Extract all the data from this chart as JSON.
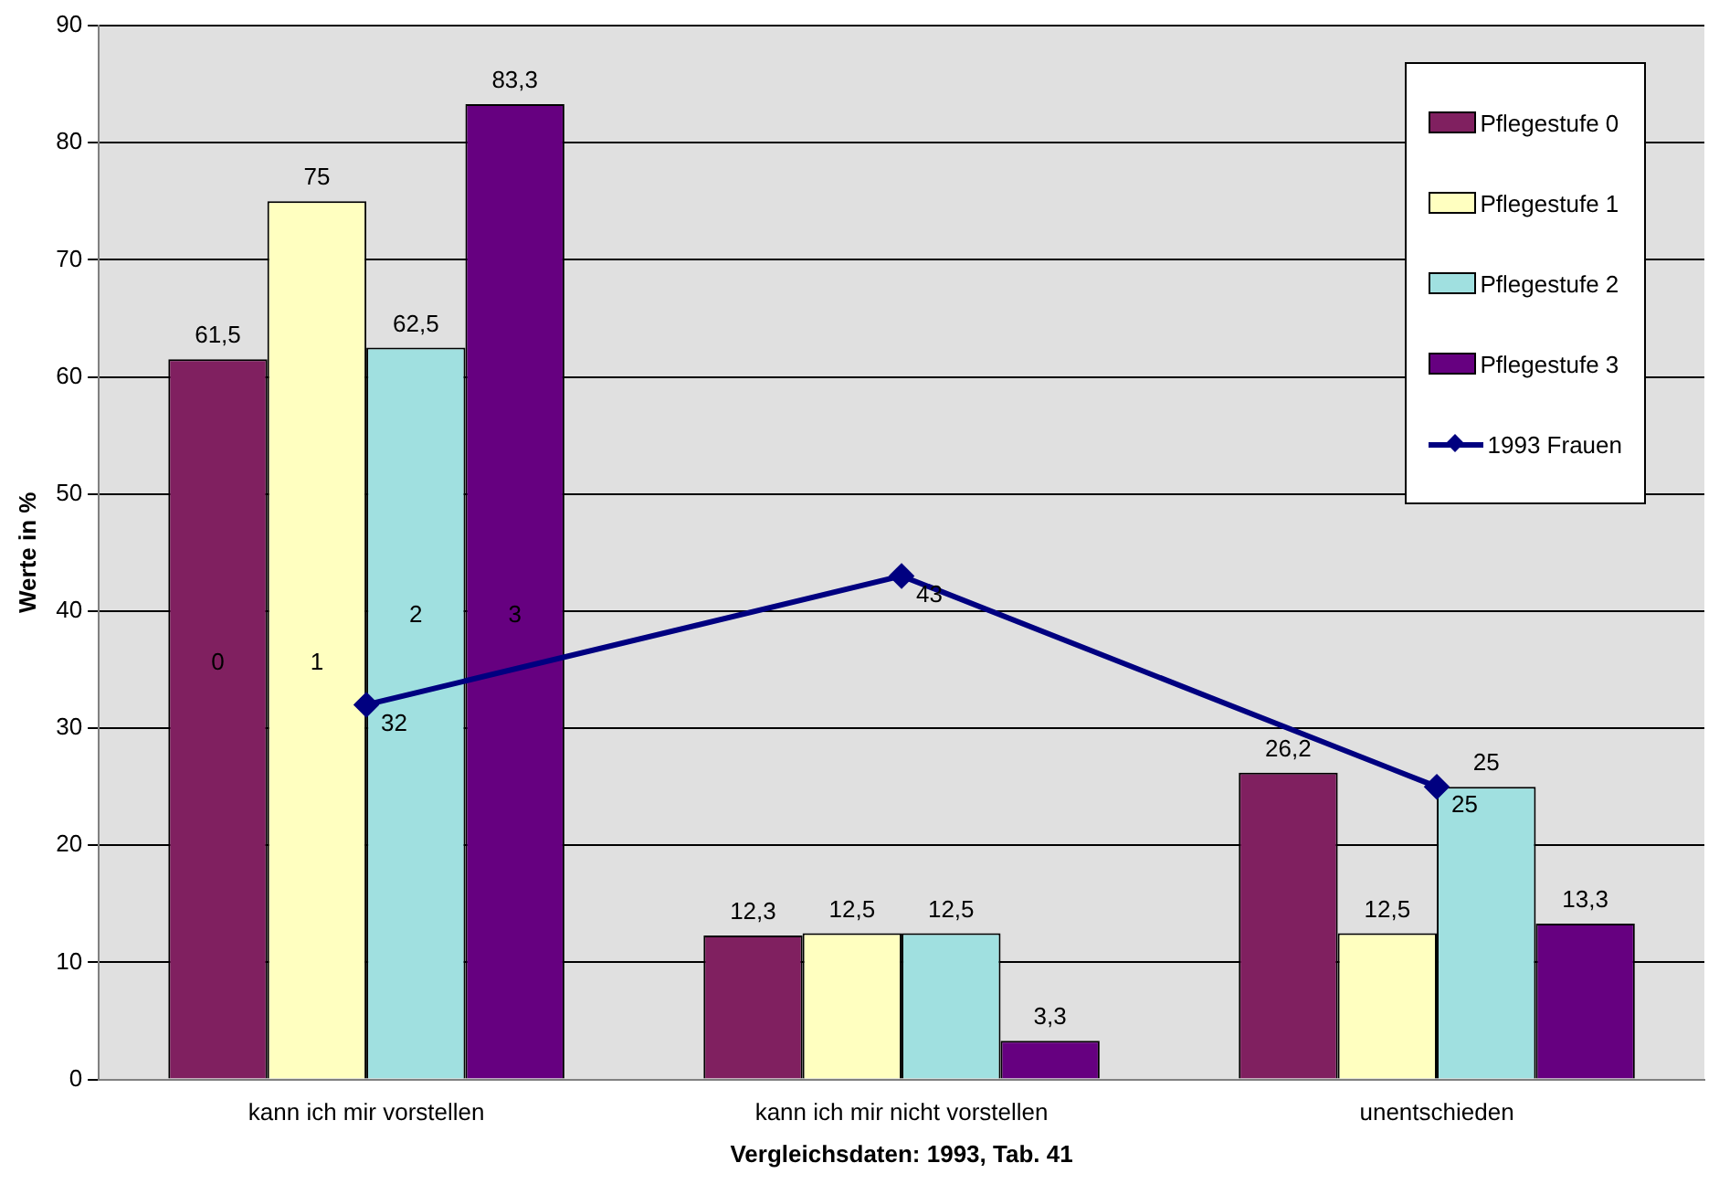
{
  "chart_data": {
    "type": "bar",
    "ylabel": "Werte in %",
    "xlabel": "Vergleichsdaten: 1993, Tab. 41",
    "categories": [
      "kann ich mir vorstellen",
      "kann ich mir nicht vorstellen",
      "unentschieden"
    ],
    "series": [
      {
        "name": "Pflegestufe 0",
        "color": "#802060",
        "values": [
          61.5,
          12.3,
          26.2
        ],
        "value_labels": [
          "61,5",
          "12,3",
          "26,2"
        ]
      },
      {
        "name": "Pflegestufe 1",
        "color": "#ffffc0",
        "values": [
          75,
          12.5,
          12.5
        ],
        "value_labels": [
          "75",
          "12,5",
          "12,5"
        ]
      },
      {
        "name": "Pflegestufe 2",
        "color": "#a0e0e0",
        "values": [
          62.5,
          12.5,
          25
        ],
        "value_labels": [
          "62,5",
          "12,5",
          "25"
        ]
      },
      {
        "name": "Pflegestufe 3",
        "color": "#660080",
        "values": [
          83.3,
          3.3,
          13.3
        ],
        "value_labels": [
          "83,3",
          "3,3",
          "13,3"
        ]
      },
      {
        "name": "1993 Frauen",
        "type": "line",
        "color": "#000080",
        "values": [
          32,
          43,
          25
        ],
        "marker": "diamond",
        "value_labels": [
          "32",
          "43",
          "25"
        ]
      }
    ],
    "annotations": [
      "0",
      "1",
      "2",
      "3"
    ],
    "ylim": [
      0,
      90
    ],
    "yticks": [
      0,
      10,
      20,
      30,
      40,
      50,
      60,
      70,
      80,
      90
    ],
    "grid": "y",
    "legend": "top right"
  }
}
